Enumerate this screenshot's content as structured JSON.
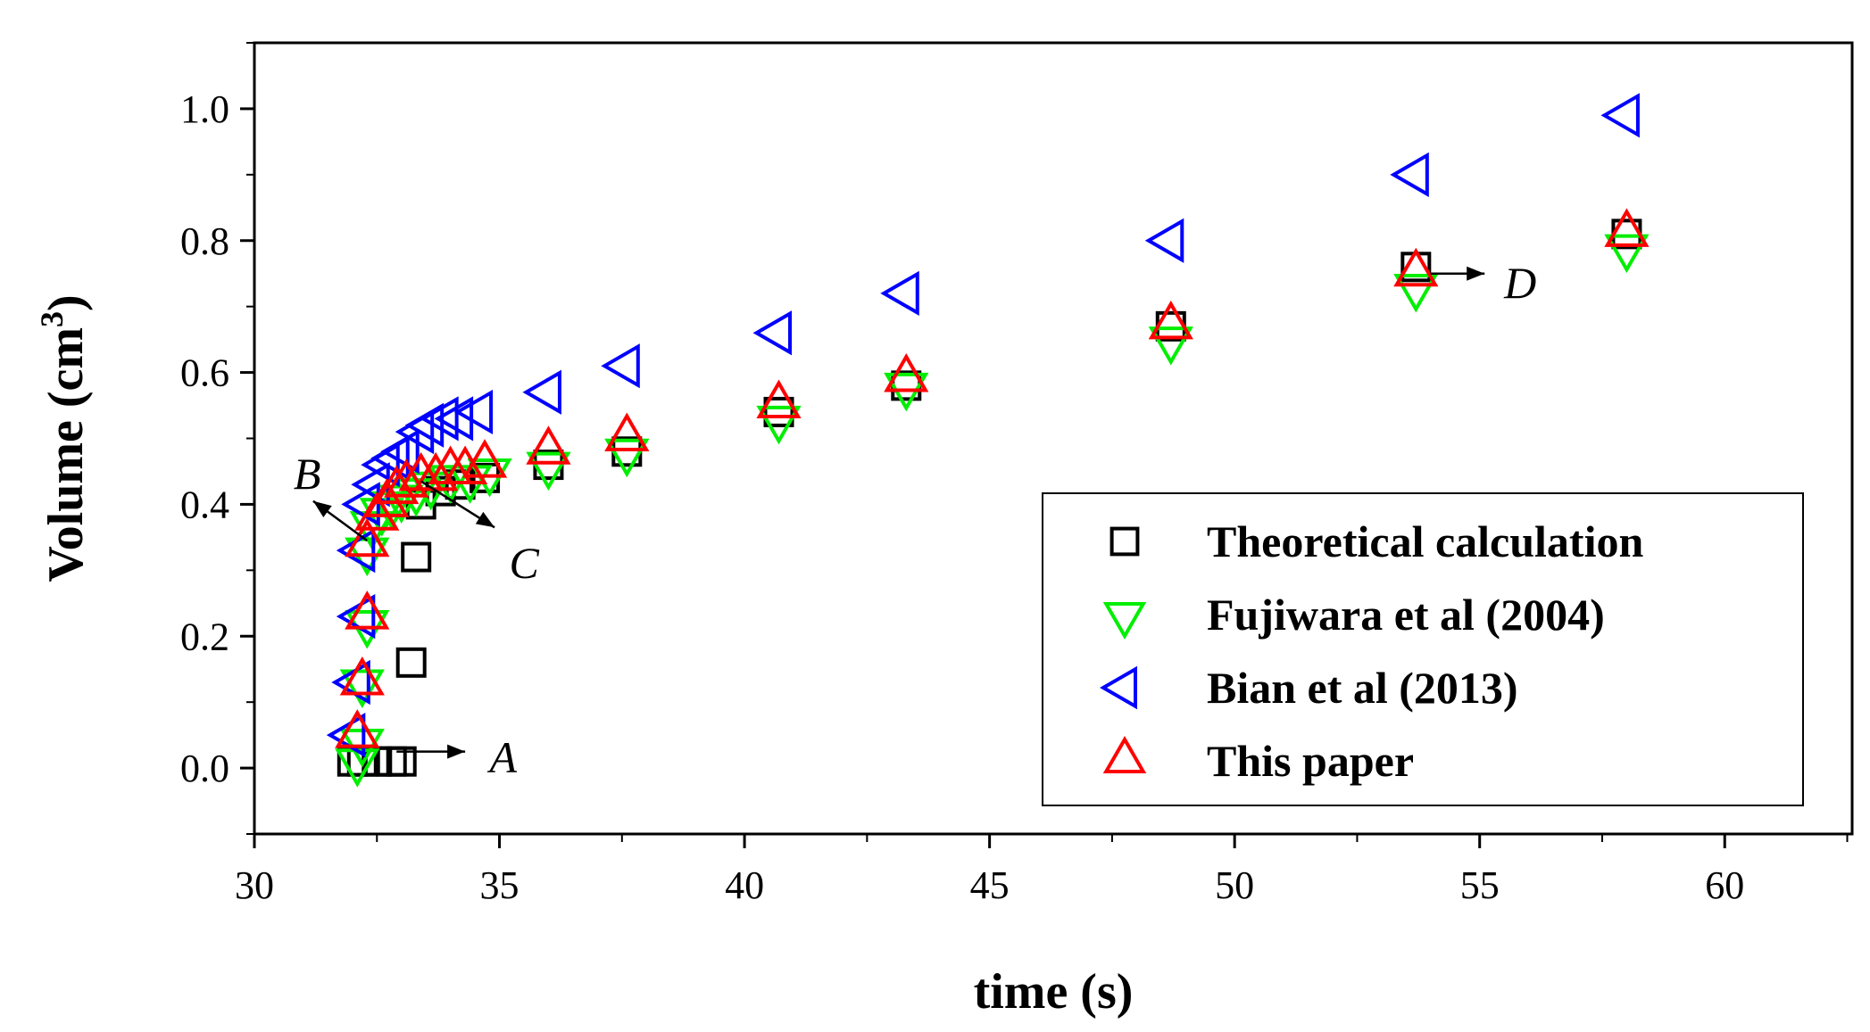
{
  "chart_data": {
    "type": "scatter",
    "title": "",
    "xlabel": "time (s)",
    "ylabel_main": "Volume (cm",
    "ylabel_sup": "3",
    "ylabel_close": ")",
    "xlim": [
      30,
      62.6
    ],
    "ylim": [
      -0.1,
      1.1
    ],
    "xticks": [
      30,
      35,
      40,
      45,
      50,
      55,
      60
    ],
    "xtick_labels": [
      "30",
      "35",
      "40",
      "45",
      "50",
      "55",
      "60"
    ],
    "yticks": [
      0.0,
      0.2,
      0.4,
      0.6,
      0.8,
      1.0
    ],
    "ytick_labels": [
      "0.0",
      "0.2",
      "0.4",
      "0.6",
      "0.8",
      "1.0"
    ],
    "legend_position": "bottom-right",
    "series": [
      {
        "name": "Theoretical calculation",
        "marker": "square",
        "color": "#000000",
        "points": [
          [
            32.0,
            0.01
          ],
          [
            32.2,
            0.01
          ],
          [
            32.5,
            0.01
          ],
          [
            32.8,
            0.01
          ],
          [
            33.0,
            0.01
          ],
          [
            33.2,
            0.16
          ],
          [
            33.3,
            0.32
          ],
          [
            33.4,
            0.4
          ],
          [
            33.8,
            0.42
          ],
          [
            34.2,
            0.43
          ],
          [
            34.7,
            0.44
          ],
          [
            36.0,
            0.46
          ],
          [
            37.6,
            0.48
          ],
          [
            40.7,
            0.54
          ],
          [
            43.3,
            0.58
          ],
          [
            48.7,
            0.67
          ],
          [
            53.7,
            0.76
          ],
          [
            58.0,
            0.81
          ]
        ]
      },
      {
        "name": "Fujiwara et al (2004)",
        "marker": "triangle-down",
        "color": "#00ee00",
        "points": [
          [
            32.1,
            0.01
          ],
          [
            32.2,
            0.04
          ],
          [
            32.2,
            0.13
          ],
          [
            32.3,
            0.22
          ],
          [
            32.3,
            0.33
          ],
          [
            32.4,
            0.37
          ],
          [
            32.6,
            0.39
          ],
          [
            32.8,
            0.4
          ],
          [
            33.0,
            0.41
          ],
          [
            33.3,
            0.42
          ],
          [
            33.6,
            0.43
          ],
          [
            34.0,
            0.44
          ],
          [
            34.4,
            0.44
          ],
          [
            34.8,
            0.45
          ],
          [
            36.0,
            0.46
          ],
          [
            37.6,
            0.48
          ],
          [
            40.7,
            0.53
          ],
          [
            43.3,
            0.58
          ],
          [
            48.7,
            0.65
          ],
          [
            53.7,
            0.73
          ],
          [
            58.0,
            0.79
          ]
        ]
      },
      {
        "name": "Bian et al (2013)",
        "marker": "triangle-left",
        "color": "#0000ff",
        "points": [
          [
            32.0,
            0.05
          ],
          [
            32.1,
            0.13
          ],
          [
            32.2,
            0.23
          ],
          [
            32.2,
            0.33
          ],
          [
            32.3,
            0.4
          ],
          [
            32.5,
            0.43
          ],
          [
            32.7,
            0.46
          ],
          [
            32.9,
            0.47
          ],
          [
            33.1,
            0.48
          ],
          [
            33.4,
            0.51
          ],
          [
            33.6,
            0.52
          ],
          [
            33.9,
            0.53
          ],
          [
            34.2,
            0.53
          ],
          [
            34.6,
            0.54
          ],
          [
            36.0,
            0.57
          ],
          [
            37.6,
            0.61
          ],
          [
            40.7,
            0.66
          ],
          [
            43.3,
            0.72
          ],
          [
            48.7,
            0.8
          ],
          [
            53.7,
            0.9
          ],
          [
            58.0,
            0.99
          ]
        ]
      },
      {
        "name": "This paper",
        "marker": "triangle-up",
        "color": "#ff0000",
        "points": [
          [
            32.1,
            0.05
          ],
          [
            32.2,
            0.13
          ],
          [
            32.3,
            0.23
          ],
          [
            32.3,
            0.34
          ],
          [
            32.5,
            0.38
          ],
          [
            32.7,
            0.4
          ],
          [
            32.9,
            0.42
          ],
          [
            33.1,
            0.43
          ],
          [
            33.4,
            0.44
          ],
          [
            33.7,
            0.44
          ],
          [
            34.0,
            0.45
          ],
          [
            34.3,
            0.45
          ],
          [
            34.7,
            0.46
          ],
          [
            36.0,
            0.48
          ],
          [
            37.6,
            0.5
          ],
          [
            40.7,
            0.55
          ],
          [
            43.3,
            0.59
          ],
          [
            48.7,
            0.67
          ],
          [
            53.7,
            0.75
          ],
          [
            58.0,
            0.81
          ]
        ]
      }
    ],
    "annotations": [
      {
        "label": "A",
        "arrow_from": [
          32.9,
          0.025
        ],
        "arrow_to": [
          34.3,
          0.025
        ],
        "text_at": [
          34.8,
          0.015
        ]
      },
      {
        "label": "B",
        "arrow_from": [
          32.3,
          0.345
        ],
        "arrow_to": [
          31.2,
          0.405
        ],
        "text_at": [
          30.8,
          0.445
        ]
      },
      {
        "label": "C",
        "arrow_from": [
          33.4,
          0.435
        ],
        "arrow_to": [
          34.9,
          0.365
        ],
        "text_at": [
          35.2,
          0.31
        ]
      },
      {
        "label": "D",
        "arrow_from": [
          54.0,
          0.75
        ],
        "arrow_to": [
          55.1,
          0.75
        ],
        "text_at": [
          55.5,
          0.735
        ]
      }
    ]
  }
}
